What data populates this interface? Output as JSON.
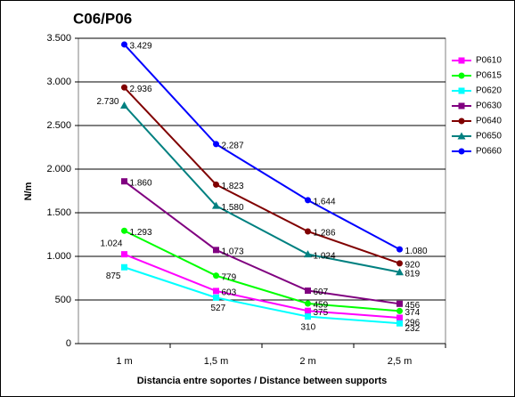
{
  "chart_data": {
    "type": "line",
    "title": "C06/P06",
    "x_label": "Distancia entre soportes / Distance between supports",
    "y_label": "N/m",
    "categories": [
      "1 m",
      "1,5 m",
      "2 m",
      "2,5 m"
    ],
    "ylim": [
      0,
      3500
    ],
    "yticks": [
      0,
      500,
      {
        "value": 1000,
        "label": "1.000"
      },
      {
        "value": 1500,
        "label": "1.500"
      },
      {
        "value": 2000,
        "label": "2.000"
      },
      {
        "value": 2500,
        "label": "2.500"
      },
      {
        "value": 3000,
        "label": "3.000"
      },
      {
        "value": 3500,
        "label": "3.500"
      }
    ],
    "grid": true,
    "legend": "right",
    "series": [
      {
        "name": "P0610",
        "color": "#ff00ff",
        "marker": "square",
        "values": [
          1024,
          603,
          375,
          296
        ],
        "value_labels": [
          "1.024",
          "603",
          "375",
          "296"
        ]
      },
      {
        "name": "P0615",
        "color": "#00ff00",
        "marker": "circle",
        "values": [
          1293,
          779,
          459,
          374
        ],
        "value_labels": [
          "1.293",
          "779",
          "459",
          "374"
        ]
      },
      {
        "name": "P0620",
        "color": "#00ffff",
        "marker": "square",
        "values": [
          875,
          527,
          310,
          232
        ],
        "value_labels": [
          "875",
          "527",
          "310",
          "232"
        ]
      },
      {
        "name": "P0630",
        "color": "#800080",
        "marker": "square",
        "values": [
          1860,
          1073,
          607,
          456
        ],
        "value_labels": [
          "1.860",
          "1.073",
          "607",
          "456"
        ]
      },
      {
        "name": "P0640",
        "color": "#800000",
        "marker": "circle",
        "values": [
          2936,
          1823,
          1286,
          920
        ],
        "value_labels": [
          "2.936",
          "1.823",
          "1.286",
          "920"
        ]
      },
      {
        "name": "P0650",
        "color": "#008080",
        "marker": "triangle",
        "values": [
          2730,
          1580,
          1024,
          819
        ],
        "value_labels": [
          "2.730",
          "1.580",
          "1.024",
          "819"
        ]
      },
      {
        "name": "P0660",
        "color": "#0000ff",
        "marker": "circle",
        "values": [
          3429,
          2287,
          1644,
          1080
        ],
        "value_labels": [
          "3.429",
          "2.287",
          "1.644",
          "1.080"
        ]
      }
    ]
  }
}
